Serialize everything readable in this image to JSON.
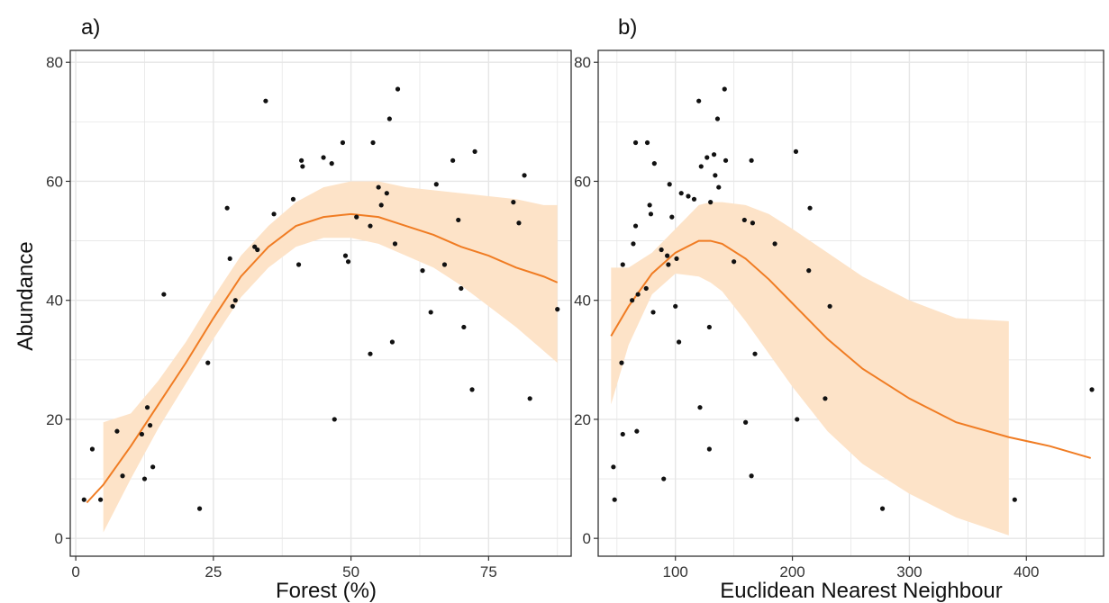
{
  "figure": {
    "background": "#ffffff",
    "panel_border": "#333333",
    "grid_color": "#e6e6e6"
  },
  "chart_data": [
    {
      "type": "scatter",
      "panel_label": "a)",
      "xlabel": "Forest (%)",
      "ylabel": "Abundance",
      "xlim": [
        -1,
        90
      ],
      "ylim": [
        -3,
        82
      ],
      "xticks": [
        0,
        25,
        50,
        75
      ],
      "yticks": [
        0,
        20,
        40,
        60,
        80
      ],
      "grid": true,
      "point_color": "#111111",
      "points": [
        [
          1.5,
          6.5
        ],
        [
          3,
          15
        ],
        [
          4.5,
          6.5
        ],
        [
          7.5,
          18
        ],
        [
          8.5,
          10.5
        ],
        [
          12,
          17.5
        ],
        [
          12.5,
          10
        ],
        [
          13,
          22
        ],
        [
          13.5,
          19
        ],
        [
          14,
          12
        ],
        [
          16,
          41
        ],
        [
          22.5,
          5
        ],
        [
          24,
          29.5
        ],
        [
          27.5,
          55.5
        ],
        [
          28,
          47
        ],
        [
          28.5,
          39
        ],
        [
          29,
          40
        ],
        [
          32.5,
          49
        ],
        [
          33,
          48.5
        ],
        [
          34.5,
          73.5
        ],
        [
          36,
          54.5
        ],
        [
          39.5,
          57
        ],
        [
          40.5,
          46
        ],
        [
          41,
          63.5
        ],
        [
          41.2,
          62.5
        ],
        [
          45,
          64
        ],
        [
          46.5,
          63
        ],
        [
          47,
          20
        ],
        [
          48.5,
          66.5
        ],
        [
          49,
          47.5
        ],
        [
          49.5,
          46.5
        ],
        [
          51,
          54
        ],
        [
          53.5,
          52.5
        ],
        [
          53.5,
          31
        ],
        [
          54,
          66.5
        ],
        [
          55,
          59
        ],
        [
          55.5,
          56
        ],
        [
          56.5,
          58
        ],
        [
          57,
          70.5
        ],
        [
          57.5,
          33
        ],
        [
          58,
          49.5
        ],
        [
          58.5,
          75.5
        ],
        [
          63,
          45
        ],
        [
          64.5,
          38
        ],
        [
          65.5,
          59.5
        ],
        [
          67,
          46
        ],
        [
          68.5,
          63.5
        ],
        [
          69.5,
          53.5
        ],
        [
          70,
          42
        ],
        [
          70.5,
          35.5
        ],
        [
          72,
          25
        ],
        [
          72.5,
          65
        ],
        [
          79.5,
          56.5
        ],
        [
          80.5,
          53
        ],
        [
          81.5,
          61
        ],
        [
          82.5,
          23.5
        ],
        [
          87.5,
          38.5
        ]
      ],
      "fit": {
        "name": "smooth fit",
        "color": "#f07c23",
        "ribbon_color": "#fde3c8",
        "x": [
          2,
          5,
          10,
          15,
          20,
          25,
          30,
          35,
          40,
          45,
          50,
          55,
          60,
          65,
          70,
          75,
          80,
          85,
          87.5
        ],
        "y": [
          6,
          9,
          15.5,
          22.5,
          29.5,
          37,
          44,
          49,
          52.5,
          54,
          54.5,
          54,
          52.5,
          51,
          49,
          47.5,
          45.5,
          44,
          43
        ],
        "lower": [
          null,
          1,
          10,
          18.5,
          26,
          33.5,
          40.5,
          45.5,
          49,
          50.5,
          50.5,
          49.5,
          47.5,
          45.5,
          42.5,
          39,
          35.5,
          31.5,
          29.5
        ],
        "upper": [
          null,
          19.5,
          21,
          26.5,
          33,
          40.5,
          47.5,
          52.5,
          56.5,
          59,
          60,
          60,
          59,
          58.5,
          58,
          57.5,
          57,
          56,
          56
        ]
      }
    },
    {
      "type": "scatter",
      "panel_label": "b)",
      "xlabel": "Euclidean Nearest Neighbour",
      "ylabel": "",
      "xlim": [
        34,
        466
      ],
      "ylim": [
        -3,
        82
      ],
      "xticks": [
        100,
        200,
        300,
        400
      ],
      "yticks": [
        0,
        20,
        40,
        60,
        80
      ],
      "grid": true,
      "point_color": "#111111",
      "points": [
        [
          47,
          12
        ],
        [
          48,
          6.5
        ],
        [
          54,
          29.5
        ],
        [
          55,
          46
        ],
        [
          55,
          17.5
        ],
        [
          63,
          40
        ],
        [
          64,
          49.5
        ],
        [
          66,
          66.5
        ],
        [
          66,
          52.5
        ],
        [
          67,
          18
        ],
        [
          68,
          41
        ],
        [
          75,
          42
        ],
        [
          76,
          66.5
        ],
        [
          78,
          56
        ],
        [
          79,
          54.5
        ],
        [
          81,
          38
        ],
        [
          82,
          63
        ],
        [
          88,
          48.5
        ],
        [
          90,
          10
        ],
        [
          93,
          47.5
        ],
        [
          94,
          46
        ],
        [
          95,
          59.5
        ],
        [
          97,
          54
        ],
        [
          100,
          39
        ],
        [
          101,
          47
        ],
        [
          103,
          33
        ],
        [
          105,
          58
        ],
        [
          111,
          57.5
        ],
        [
          116,
          57
        ],
        [
          120,
          73.5
        ],
        [
          121,
          22
        ],
        [
          122,
          62.5
        ],
        [
          127,
          64
        ],
        [
          129,
          15
        ],
        [
          129,
          35.5
        ],
        [
          130,
          56.5
        ],
        [
          133,
          64.5
        ],
        [
          134,
          61
        ],
        [
          136,
          70.5
        ],
        [
          137,
          59
        ],
        [
          142,
          75.5
        ],
        [
          143,
          63.5
        ],
        [
          150,
          46.5
        ],
        [
          159,
          53.5
        ],
        [
          160,
          19.5
        ],
        [
          165,
          63.5
        ],
        [
          165,
          10.5
        ],
        [
          166,
          53
        ],
        [
          168,
          31
        ],
        [
          185,
          49.5
        ],
        [
          203,
          65
        ],
        [
          204,
          20
        ],
        [
          214,
          45
        ],
        [
          215,
          55.5
        ],
        [
          228,
          23.5
        ],
        [
          232,
          39
        ],
        [
          277,
          5
        ],
        [
          390,
          6.5
        ],
        [
          456,
          25
        ]
      ],
      "fit": {
        "name": "smooth fit",
        "color": "#f07c23",
        "ribbon_color": "#fde3c8",
        "x": [
          45,
          60,
          80,
          100,
          120,
          130,
          140,
          160,
          180,
          200,
          230,
          260,
          300,
          340,
          385,
          420,
          455
        ],
        "y": [
          34,
          39,
          44.5,
          48,
          50,
          50,
          49.5,
          47,
          43.5,
          39.5,
          33.5,
          28.5,
          23.5,
          19.5,
          17,
          15.5,
          13.5
        ],
        "lower": [
          22.5,
          32.5,
          41,
          44.5,
          44,
          43,
          41.5,
          36.5,
          31,
          25.5,
          18,
          12.5,
          7.5,
          3.5,
          0.5,
          null,
          null
        ],
        "upper": [
          45.5,
          45.5,
          48,
          52,
          56,
          56.5,
          56.5,
          56,
          54.5,
          52,
          48,
          44,
          40,
          37,
          36.5,
          null,
          null
        ]
      }
    }
  ]
}
